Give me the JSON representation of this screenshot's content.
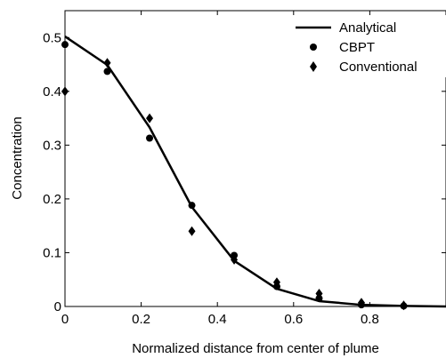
{
  "chart_data": {
    "type": "line",
    "xlabel": "Normalized distance from center of plume",
    "ylabel": "Concentration",
    "xlim": [
      0,
      1
    ],
    "ylim": [
      0,
      0.55
    ],
    "xticks": [
      0,
      0.2,
      0.4,
      0.6,
      0.8
    ],
    "xtick_labels": [
      "0",
      "0.2",
      "0.4",
      "0.6",
      "0.8"
    ],
    "yticks": [
      0,
      0.1,
      0.2,
      0.3,
      0.4,
      0.5
    ],
    "ytick_labels": [
      "0",
      "0.1",
      "0.2",
      "0.3",
      "0.4",
      "0.5"
    ],
    "grid": false,
    "legend_position": "top-right",
    "series": [
      {
        "name": "Analytical",
        "style": "line",
        "color": "#000000",
        "x": [
          0,
          0.111,
          0.222,
          0.333,
          0.444,
          0.556,
          0.667,
          0.778,
          0.889,
          1.0
        ],
        "y": [
          0.502,
          0.449,
          0.333,
          0.185,
          0.085,
          0.033,
          0.01,
          0.003,
          0.001,
          0.0
        ]
      },
      {
        "name": "CBPT",
        "style": "circle",
        "color": "#000000",
        "x": [
          0,
          0.111,
          0.222,
          0.333,
          0.444,
          0.556,
          0.667,
          0.778,
          0.889
        ],
        "y": [
          0.487,
          0.437,
          0.313,
          0.188,
          0.095,
          0.037,
          0.015,
          0.003,
          0.001
        ]
      },
      {
        "name": "Conventional",
        "style": "diamond",
        "color": "#000000",
        "x": [
          0,
          0.111,
          0.222,
          0.333,
          0.444,
          0.556,
          0.667,
          0.778,
          0.889
        ],
        "y": [
          0.4,
          0.453,
          0.35,
          0.14,
          0.087,
          0.045,
          0.024,
          0.007,
          0.002
        ]
      }
    ]
  }
}
